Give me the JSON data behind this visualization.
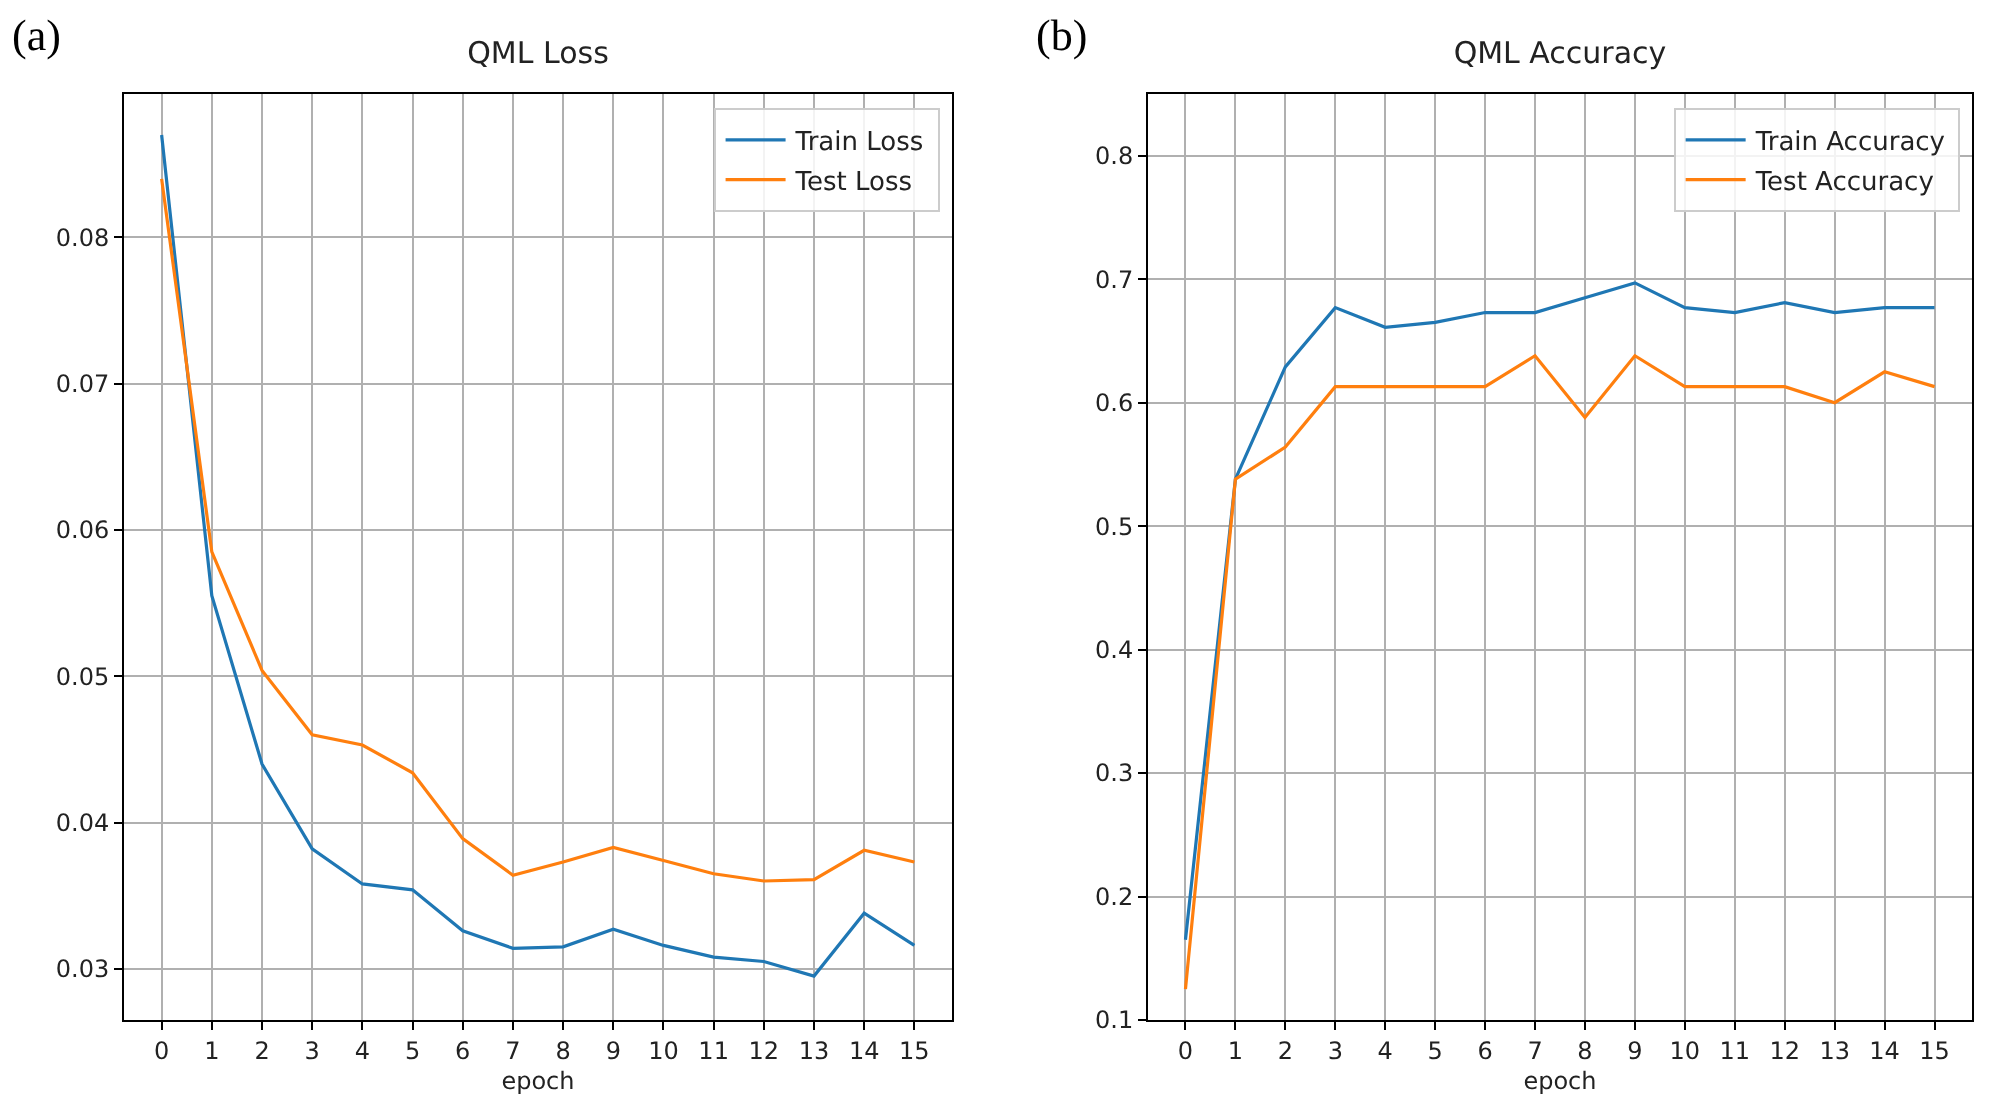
{
  "chart_data": [
    {
      "type": "line",
      "title": "QML Loss",
      "xlabel": "epoch",
      "annotations": [
        "(a)"
      ],
      "x": [
        0,
        1,
        2,
        3,
        4,
        5,
        6,
        7,
        8,
        9,
        10,
        11,
        12,
        13,
        14,
        15
      ],
      "series": [
        {
          "name": "Train Loss",
          "color": "#1f77b4",
          "values": [
            0.087,
            0.0555,
            0.044,
            0.0382,
            0.0358,
            0.0354,
            0.0326,
            0.0314,
            0.0315,
            0.0327,
            0.0316,
            0.0308,
            0.0305,
            0.0295,
            0.0338,
            0.0316
          ]
        },
        {
          "name": "Test Loss",
          "color": "#ff7f0e",
          "values": [
            0.084,
            0.0585,
            0.0504,
            0.046,
            0.0453,
            0.0434,
            0.0389,
            0.0364,
            0.0373,
            0.0383,
            0.0374,
            0.0365,
            0.036,
            0.0361,
            0.0381,
            0.0373
          ]
        }
      ],
      "xlim": [
        -0.75,
        15.75
      ],
      "xticks": [
        0,
        1,
        2,
        3,
        4,
        5,
        6,
        7,
        8,
        9,
        10,
        11,
        12,
        13,
        14,
        15
      ],
      "ylim": [
        0.0265,
        0.0898
      ],
      "yticks": [
        0.03,
        0.04,
        0.05,
        0.06,
        0.07,
        0.08
      ],
      "grid": true,
      "legend": "top right",
      "marker": "none",
      "line_style": "solid"
    },
    {
      "type": "line",
      "title": "QML Accuracy",
      "xlabel": "epoch",
      "annotations": [
        "(b)"
      ],
      "x": [
        0,
        1,
        2,
        3,
        4,
        5,
        6,
        7,
        8,
        9,
        10,
        11,
        12,
        13,
        14,
        15
      ],
      "series": [
        {
          "name": "Train Accuracy",
          "color": "#1f77b4",
          "values": [
            0.165,
            0.538,
            0.629,
            0.677,
            0.661,
            0.665,
            0.673,
            0.673,
            0.685,
            0.697,
            0.677,
            0.673,
            0.681,
            0.673,
            0.677,
            0.677
          ]
        },
        {
          "name": "Test Accuracy",
          "color": "#ff7f0e",
          "values": [
            0.125,
            0.538,
            0.564,
            0.613,
            0.613,
            0.613,
            0.613,
            0.638,
            0.588,
            0.638,
            0.613,
            0.613,
            0.613,
            0.6,
            0.625,
            0.613
          ]
        }
      ],
      "xlim": [
        -0.75,
        15.75
      ],
      "xticks": [
        0,
        1,
        2,
        3,
        4,
        5,
        6,
        7,
        8,
        9,
        10,
        11,
        12,
        13,
        14,
        15
      ],
      "ylim": [
        0.1,
        0.85
      ],
      "yticks": [
        0.1,
        0.2,
        0.3,
        0.4,
        0.5,
        0.6,
        0.7,
        0.8
      ],
      "grid": true,
      "legend": "top right",
      "marker": "none",
      "line_style": "solid"
    }
  ]
}
